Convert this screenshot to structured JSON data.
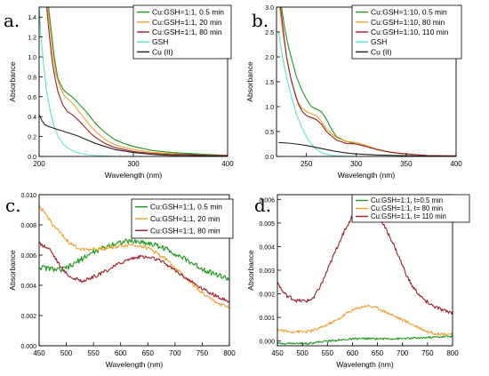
{
  "chart_data": [
    {
      "panel_label": "a.",
      "type": "line",
      "xlabel": "Wavelength (nm)",
      "ylabel": "Absorbance",
      "xlim": [
        200,
        400
      ],
      "ylim": [
        0,
        1.5
      ],
      "xticks": [
        200,
        300,
        400
      ],
      "yticks": [
        0.0,
        0.2,
        0.4,
        0.6,
        0.8,
        1.0,
        1.2,
        1.4
      ],
      "ytick_labels": [
        "0.0",
        "0.2",
        "0.4",
        "0.6",
        "0.8",
        "1.0",
        "1.2",
        "1.4"
      ],
      "legend_position": "top-right",
      "series": [
        {
          "name": "Cu:GSH=1:1, 0.5 min",
          "color": "#1a9a1a",
          "x": [
            210,
            213,
            216,
            220,
            225,
            230,
            235,
            240,
            245,
            250,
            255,
            260,
            270,
            280,
            290,
            300,
            320,
            340,
            360,
            380,
            400
          ],
          "y": [
            1.5,
            1.25,
            1.0,
            0.78,
            0.68,
            0.63,
            0.6,
            0.55,
            0.5,
            0.45,
            0.39,
            0.33,
            0.24,
            0.17,
            0.13,
            0.1,
            0.06,
            0.04,
            0.03,
            0.02,
            0.01
          ]
        },
        {
          "name": "Cu:GSH=1:1, 20 min",
          "color": "#f0a030",
          "x": [
            209,
            212,
            215,
            218,
            222,
            226,
            230,
            235,
            240,
            245,
            250,
            255,
            260,
            270,
            280,
            290,
            300,
            320,
            340,
            360,
            380,
            400
          ],
          "y": [
            1.5,
            1.25,
            1.0,
            0.82,
            0.7,
            0.62,
            0.58,
            0.54,
            0.48,
            0.42,
            0.36,
            0.3,
            0.25,
            0.17,
            0.12,
            0.09,
            0.07,
            0.04,
            0.03,
            0.02,
            0.01,
            0.01
          ]
        },
        {
          "name": "Cu:GSH=1:1, 80 min",
          "color": "#a0202a",
          "x": [
            208,
            211,
            214,
            217,
            220,
            225,
            230,
            235,
            240,
            245,
            250,
            255,
            260,
            270,
            280,
            290,
            300,
            320,
            340,
            360,
            380,
            400
          ],
          "y": [
            1.5,
            1.2,
            0.95,
            0.78,
            0.65,
            0.52,
            0.45,
            0.42,
            0.38,
            0.33,
            0.28,
            0.23,
            0.19,
            0.13,
            0.09,
            0.07,
            0.05,
            0.03,
            0.02,
            0.02,
            0.01,
            0.01
          ]
        },
        {
          "name": "GSH",
          "color": "#5fe0d0",
          "x": [
            200,
            202,
            205,
            208,
            212,
            216,
            220,
            225,
            230,
            235,
            240,
            250,
            260,
            280,
            300,
            400
          ],
          "y": [
            1.5,
            1.2,
            0.9,
            0.65,
            0.45,
            0.3,
            0.2,
            0.13,
            0.09,
            0.06,
            0.04,
            0.02,
            0.01,
            0.0,
            0.0,
            0.0
          ]
        },
        {
          "name": "Cu (II)",
          "color": "#222222",
          "x": [
            200,
            203,
            206,
            210,
            220,
            230,
            240,
            250,
            260,
            270,
            280,
            300,
            320,
            340,
            360,
            400
          ],
          "y": [
            0.42,
            0.36,
            0.32,
            0.3,
            0.27,
            0.24,
            0.21,
            0.17,
            0.13,
            0.1,
            0.07,
            0.04,
            0.02,
            0.01,
            0.01,
            0.0
          ]
        }
      ]
    },
    {
      "panel_label": "b.",
      "type": "line",
      "xlabel": "Wavelength (nm)",
      "ylabel": "Absorbance",
      "xlim": [
        220,
        400
      ],
      "ylim": [
        0,
        3.0
      ],
      "xticks": [
        250,
        300,
        350,
        400
      ],
      "yticks": [
        0.0,
        0.5,
        1.0,
        1.5,
        2.0,
        2.5,
        3.0
      ],
      "ytick_labels": [
        "0.0",
        "0.5",
        "1.0",
        "1.5",
        "2.0",
        "2.5",
        "3.0"
      ],
      "legend_position": "top-right",
      "series": [
        {
          "name": "Cu:GSH=1:10, 0.5 min",
          "color": "#1a9a1a",
          "x": [
            225,
            228,
            232,
            236,
            240,
            245,
            250,
            255,
            260,
            265,
            270,
            275,
            280,
            290,
            300,
            310,
            320,
            330,
            340,
            350,
            370,
            400
          ],
          "y": [
            3.0,
            2.6,
            2.2,
            1.9,
            1.6,
            1.35,
            1.15,
            1.0,
            0.95,
            0.9,
            0.75,
            0.55,
            0.4,
            0.3,
            0.25,
            0.2,
            0.15,
            0.1,
            0.07,
            0.05,
            0.02,
            0.01
          ]
        },
        {
          "name": "Cu:GSH=1:10, 80 min",
          "color": "#f0a030",
          "x": [
            223,
            227,
            231,
            235,
            240,
            245,
            250,
            255,
            260,
            265,
            270,
            280,
            290,
            300,
            310,
            320,
            330,
            340,
            350,
            370,
            400
          ],
          "y": [
            3.0,
            2.4,
            1.9,
            1.5,
            1.15,
            0.98,
            0.9,
            0.86,
            0.82,
            0.7,
            0.55,
            0.38,
            0.3,
            0.28,
            0.22,
            0.15,
            0.1,
            0.07,
            0.05,
            0.02,
            0.01
          ]
        },
        {
          "name": "Cu:GSH=1:10, 110 min",
          "color": "#a0202a",
          "x": [
            224,
            227,
            230,
            234,
            238,
            242,
            246,
            250,
            255,
            260,
            265,
            270,
            280,
            290,
            300,
            310,
            320,
            330,
            340,
            350,
            370,
            400
          ],
          "y": [
            3.0,
            2.5,
            2.0,
            1.6,
            1.3,
            1.05,
            0.9,
            0.82,
            0.78,
            0.74,
            0.65,
            0.5,
            0.33,
            0.26,
            0.25,
            0.2,
            0.14,
            0.1,
            0.07,
            0.05,
            0.02,
            0.01
          ]
        },
        {
          "name": "GSH",
          "color": "#5fe0d0",
          "x": [
            222,
            226,
            230,
            235,
            240,
            245,
            250,
            255,
            260,
            265,
            270,
            280,
            300,
            400
          ],
          "y": [
            2.5,
            2.0,
            1.6,
            1.2,
            0.85,
            0.6,
            0.4,
            0.25,
            0.14,
            0.08,
            0.04,
            0.01,
            0.0,
            0.0
          ]
        },
        {
          "name": "Cu (II)",
          "color": "#222222",
          "x": [
            222,
            230,
            240,
            250,
            260,
            270,
            280,
            290,
            300,
            320,
            340,
            360,
            400
          ],
          "y": [
            0.28,
            0.27,
            0.25,
            0.22,
            0.18,
            0.14,
            0.1,
            0.07,
            0.05,
            0.03,
            0.02,
            0.01,
            0.0
          ]
        }
      ]
    },
    {
      "panel_label": "c.",
      "type": "line",
      "xlabel": "Wavelength (nm)",
      "ylabel": "Absorbance",
      "xlim": [
        450,
        800
      ],
      "ylim": [
        0,
        0.01
      ],
      "xticks": [
        450,
        500,
        550,
        600,
        650,
        700,
        750,
        800
      ],
      "yticks": [
        0.0,
        0.002,
        0.004,
        0.006,
        0.008,
        0.01
      ],
      "ytick_labels": [
        "0.000",
        "0.002",
        "0.004",
        "0.006",
        "0.008",
        "0.010"
      ],
      "legend_position": "top-right",
      "series": [
        {
          "name": "Cu:GSH=1:1, 0.5 min",
          "color": "#1a9a1a",
          "noise": 0.00018,
          "x": [
            450,
            470,
            490,
            510,
            530,
            550,
            570,
            590,
            610,
            630,
            650,
            670,
            690,
            710,
            730,
            750,
            770,
            800
          ],
          "y": [
            0.0052,
            0.0051,
            0.005,
            0.0053,
            0.0058,
            0.0062,
            0.0065,
            0.0068,
            0.0069,
            0.0069,
            0.0068,
            0.0066,
            0.0063,
            0.0059,
            0.0055,
            0.0051,
            0.0048,
            0.0044
          ]
        },
        {
          "name": "Cu:GSH=1:1, 20 min",
          "color": "#f0a030",
          "noise": 0.00012,
          "x": [
            450,
            460,
            470,
            480,
            490,
            500,
            510,
            520,
            530,
            540,
            560,
            580,
            600,
            620,
            640,
            660,
            680,
            700,
            720,
            740,
            760,
            780,
            800
          ],
          "y": [
            0.0092,
            0.0088,
            0.0083,
            0.0078,
            0.0074,
            0.007,
            0.0067,
            0.0065,
            0.0064,
            0.0064,
            0.0064,
            0.0065,
            0.0066,
            0.0067,
            0.0066,
            0.0063,
            0.0058,
            0.0052,
            0.0045,
            0.0038,
            0.0032,
            0.0028,
            0.0025
          ]
        },
        {
          "name": "Cu:GSH=1:1, 80 min",
          "color": "#a0202a",
          "noise": 0.00012,
          "x": [
            450,
            460,
            470,
            480,
            490,
            500,
            510,
            520,
            530,
            540,
            560,
            580,
            600,
            620,
            640,
            660,
            680,
            700,
            720,
            740,
            760,
            780,
            800
          ],
          "y": [
            0.0068,
            0.0066,
            0.0064,
            0.0058,
            0.0052,
            0.0048,
            0.0045,
            0.0044,
            0.0043,
            0.0044,
            0.0047,
            0.0051,
            0.0055,
            0.0058,
            0.0059,
            0.0058,
            0.0055,
            0.005,
            0.0045,
            0.004,
            0.0036,
            0.0032,
            0.0029
          ]
        }
      ]
    },
    {
      "panel_label": "d.",
      "type": "line",
      "xlabel": "Wavelength (nm)",
      "ylabel": "Absorbance",
      "xlim": [
        450,
        800
      ],
      "ylim": [
        -0.0002,
        0.0062
      ],
      "xticks": [
        450,
        500,
        550,
        600,
        650,
        700,
        750,
        800
      ],
      "yticks": [
        0.0,
        0.001,
        0.002,
        0.003,
        0.004,
        0.005,
        0.006
      ],
      "ytick_labels": [
        "0.000",
        "0.001",
        "0.002",
        "0.003",
        "0.004",
        "0.005",
        "0.006"
      ],
      "legend_position": "top-right",
      "series": [
        {
          "name": "Cu:GSH=1:1, t=0.5 min",
          "color": "#1a9a1a",
          "noise": 4e-05,
          "x": [
            450,
            480,
            510,
            530,
            550,
            580,
            610,
            650,
            700,
            750,
            800
          ],
          "y": [
            -0.0001,
            -0.0001,
            -0.0001,
            -5e-05,
            0.0,
            5e-05,
            0.0001,
            0.0001,
            0.0001,
            0.00015,
            0.0002
          ]
        },
        {
          "name": "Cu:GSH=1:1, t= 80 min",
          "color": "#f0a030",
          "noise": 6e-05,
          "x": [
            450,
            470,
            490,
            510,
            530,
            550,
            570,
            590,
            610,
            630,
            650,
            670,
            690,
            710,
            730,
            750,
            770,
            800
          ],
          "y": [
            0.0005,
            0.0004,
            0.0004,
            0.0004,
            0.0005,
            0.0007,
            0.0009,
            0.0012,
            0.0014,
            0.0015,
            0.0014,
            0.0012,
            0.001,
            0.0008,
            0.0006,
            0.0004,
            0.0003,
            0.0003
          ]
        },
        {
          "name": "Cu:GSH=1:1, t= 110 min",
          "color": "#a0202a",
          "noise": 8e-05,
          "x": [
            450,
            460,
            470,
            480,
            490,
            500,
            510,
            520,
            530,
            540,
            550,
            560,
            570,
            580,
            590,
            600,
            610,
            620,
            630,
            640,
            650,
            660,
            670,
            680,
            690,
            700,
            710,
            720,
            740,
            760,
            780,
            800
          ],
          "y": [
            0.0025,
            0.0021,
            0.0019,
            0.0018,
            0.0017,
            0.0017,
            0.0017,
            0.0018,
            0.0021,
            0.0025,
            0.003,
            0.0035,
            0.004,
            0.0045,
            0.0049,
            0.0053,
            0.0055,
            0.0056,
            0.0056,
            0.0055,
            0.0053,
            0.005,
            0.0046,
            0.0042,
            0.0037,
            0.0032,
            0.0027,
            0.0023,
            0.0018,
            0.0015,
            0.0013,
            0.0012
          ]
        }
      ]
    }
  ]
}
